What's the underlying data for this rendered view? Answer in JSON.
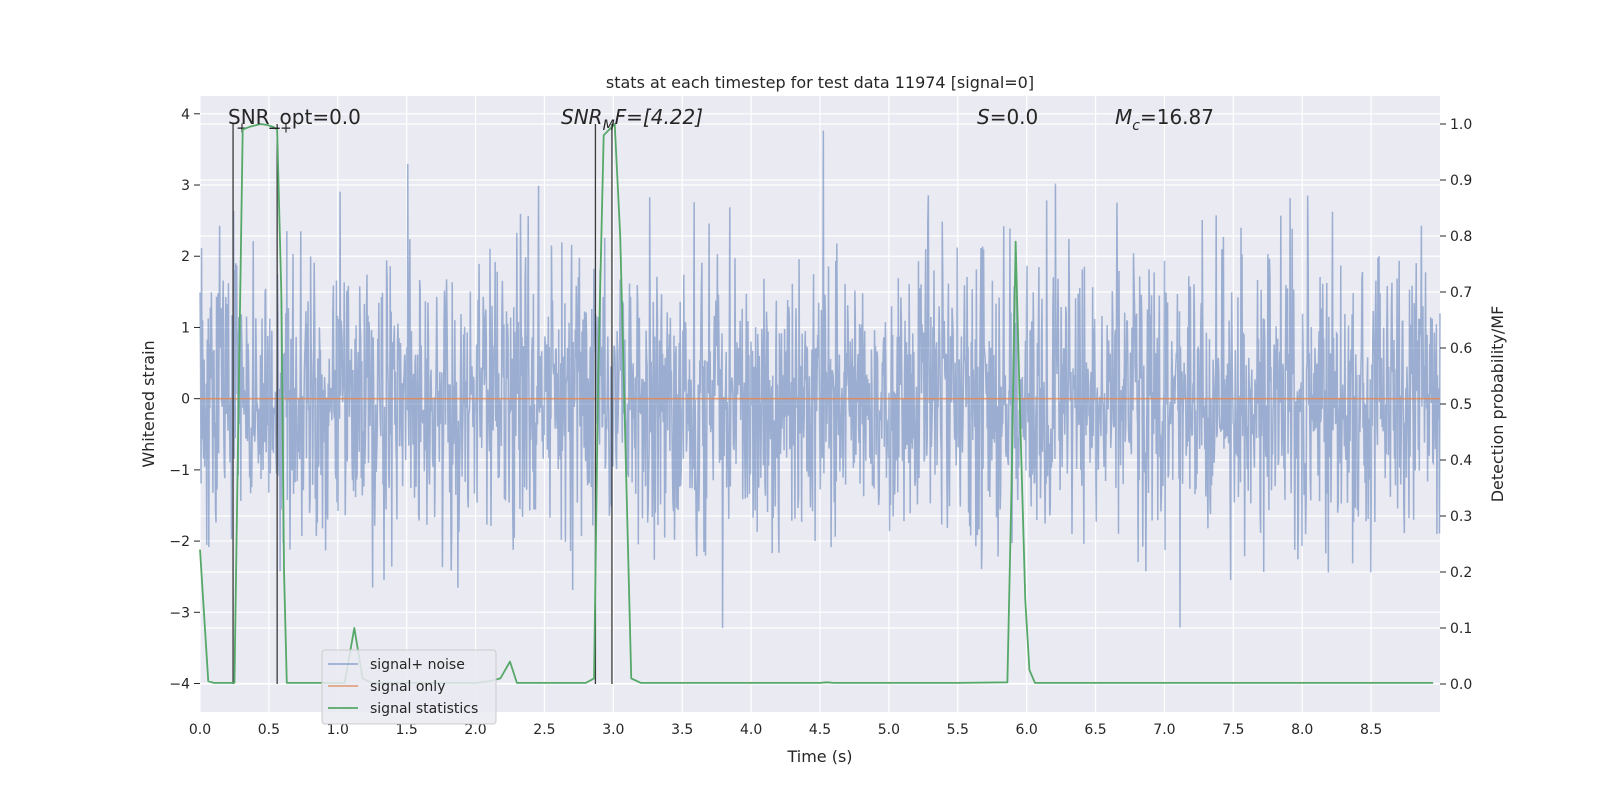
{
  "chart_data": {
    "type": "line",
    "title": "stats at each timestep for test data 11974 [signal=0]",
    "xlabel": "Time (s)",
    "ylabel": "Whitened strain",
    "y2label": "Detection probability/MF",
    "xlim": [
      0.0,
      9.0
    ],
    "ylim": [
      -4.4,
      4.25
    ],
    "y2lim": [
      -0.05,
      1.05
    ],
    "xticks": [
      "0.0",
      "0.5",
      "1.0",
      "1.5",
      "2.0",
      "2.5",
      "3.0",
      "3.5",
      "4.0",
      "4.5",
      "5.0",
      "5.5",
      "6.0",
      "6.5",
      "7.0",
      "7.5",
      "8.0",
      "8.5"
    ],
    "yticks": [
      "4",
      "3",
      "2",
      "1",
      "0",
      "−1",
      "−2",
      "−3",
      "−4"
    ],
    "y2ticks": [
      "1.0",
      "0.9",
      "0.8",
      "0.7",
      "0.6",
      "0.5",
      "0.4",
      "0.3",
      "0.2",
      "0.1",
      "0.0"
    ],
    "grid": true,
    "legend_position": "lower-left",
    "colors": {
      "plot_bg": "#eaeaf2",
      "noise": "#4c72b0",
      "signal": "#dd8452",
      "stats": "#55a868",
      "marker": "#3a3a3a"
    },
    "series": [
      {
        "name": "signal+ noise",
        "noise_band": {
          "typical_abs": 1.6,
          "peak_max": 3.85,
          "trough_min": -3.9
        }
      },
      {
        "name": "signal only",
        "x": [
          0.0,
          9.0
        ],
        "y": [
          0.0,
          0.0
        ]
      },
      {
        "name": "signal statistics",
        "x": [
          0.0,
          0.06,
          0.1,
          0.25,
          0.28,
          0.31,
          0.36,
          0.44,
          0.49,
          0.53,
          0.56,
          0.59,
          0.61,
          0.63,
          0.7,
          1.05,
          1.12,
          1.18,
          1.25,
          1.5,
          2.0,
          2.1,
          2.18,
          2.25,
          2.3,
          2.4,
          2.8,
          2.86,
          2.89,
          2.93,
          2.97,
          3.01,
          3.05,
          3.13,
          3.2,
          4.0,
          4.5,
          4.55,
          4.6,
          5.0,
          5.5,
          5.86,
          5.89,
          5.92,
          5.95,
          5.99,
          6.02,
          6.06,
          6.1,
          6.5,
          7.0,
          8.0,
          8.95
        ],
        "y": [
          0.24,
          0.005,
          0.002,
          0.002,
          0.5,
          0.99,
          0.995,
          1.0,
          0.998,
          0.995,
          0.99,
          0.7,
          0.2,
          0.002,
          0.002,
          0.002,
          0.1,
          0.01,
          0.002,
          0.002,
          0.002,
          0.005,
          0.01,
          0.04,
          0.002,
          0.002,
          0.002,
          0.01,
          0.55,
          0.98,
          0.99,
          1.0,
          0.8,
          0.01,
          0.002,
          0.002,
          0.002,
          0.003,
          0.002,
          0.002,
          0.002,
          0.003,
          0.35,
          0.79,
          0.5,
          0.15,
          0.025,
          0.002,
          0.002,
          0.002,
          0.002,
          0.002,
          0.002
        ]
      }
    ],
    "vlines": [
      {
        "x": 0.24,
        "label": "+"
      },
      {
        "x": 0.56,
        "label": "+"
      },
      {
        "x": 2.87,
        "label": ""
      },
      {
        "x": 2.99,
        "label": ""
      }
    ],
    "annotations": {
      "snr_opt": "SNR_opt=0.0",
      "snr_mf": "SNR",
      "snr_mf_sub": "M",
      "snr_mf_rest": "F=[4.22]",
      "s": "S",
      "s_rest": "=0.0",
      "mc": "M",
      "mc_sub": "c",
      "mc_rest": "=16.87"
    }
  }
}
